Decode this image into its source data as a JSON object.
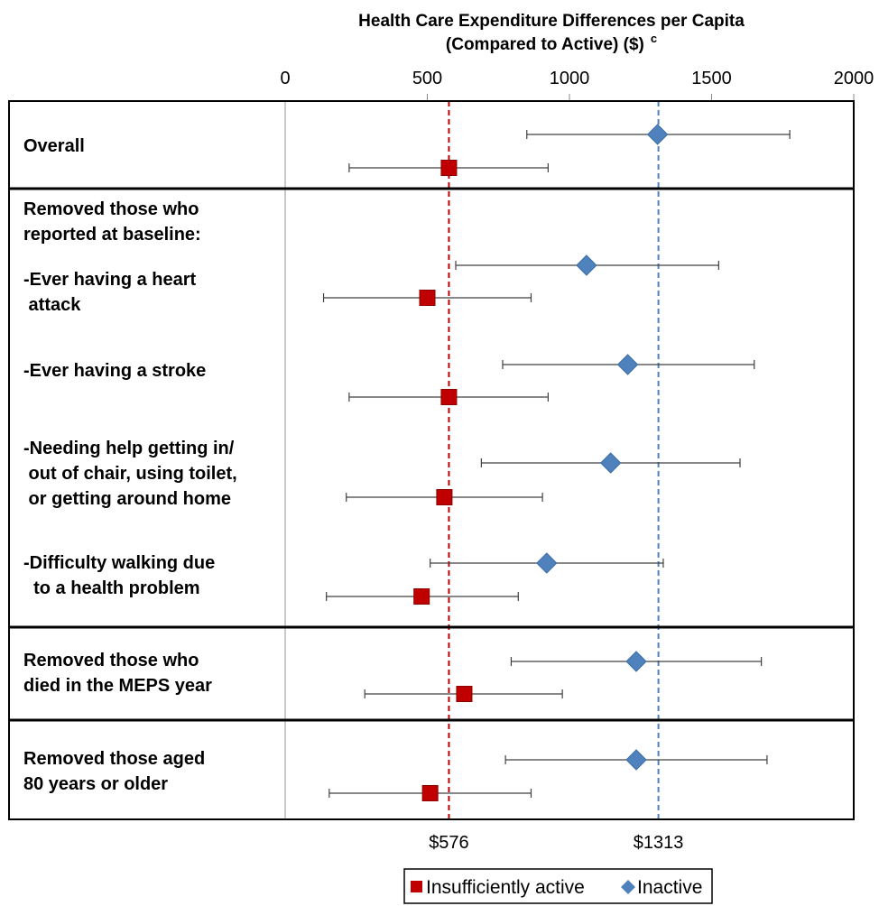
{
  "chart_data": {
    "type": "forest",
    "title": "Health Care Expenditure Differences per Capita",
    "subtitle": "(Compared to Active) ($)",
    "subtitle_superscript": "c",
    "x_axis": {
      "min": 0,
      "max": 2000,
      "ticks": [
        0,
        500,
        1000,
        1500,
        2000
      ],
      "position": "top"
    },
    "reference_lines": [
      {
        "value": 576,
        "label": "$576",
        "series": "Insufficiently active",
        "color": "#c00000",
        "style": "dashed"
      },
      {
        "value": 1313,
        "label": "$1313",
        "series": "Inactive",
        "color": "#4f81bd",
        "style": "dashed"
      }
    ],
    "series": [
      {
        "name": "Insufficiently active",
        "marker": "square",
        "color": "#c00000"
      },
      {
        "name": "Inactive",
        "marker": "diamond",
        "color": "#4f81bd"
      }
    ],
    "groups": [
      {
        "label_lines": [
          "Overall"
        ]
      },
      {
        "label_lines": [
          "Removed those who",
          "reported at baseline:"
        ]
      },
      {
        "label_lines": [
          "Removed those who",
          "died in the MEPS year"
        ]
      },
      {
        "label_lines": [
          "Removed those aged",
          "80 years or older"
        ]
      }
    ],
    "rows": [
      {
        "label_lines": [],
        "inactive": {
          "estimate": 1310,
          "lower": 850,
          "upper": 1775
        },
        "insufficiently_active": {
          "estimate": 576,
          "lower": 225,
          "upper": 925
        }
      },
      {
        "label_lines": [
          "-Ever having a heart",
          " attack"
        ],
        "inactive": {
          "estimate": 1060,
          "lower": 600,
          "upper": 1525
        },
        "insufficiently_active": {
          "estimate": 500,
          "lower": 135,
          "upper": 865
        }
      },
      {
        "label_lines": [
          "-Ever having a stroke"
        ],
        "inactive": {
          "estimate": 1205,
          "lower": 765,
          "upper": 1650
        },
        "insufficiently_active": {
          "estimate": 576,
          "lower": 225,
          "upper": 925
        }
      },
      {
        "label_lines": [
          "-Needing help getting in/",
          " out of chair, using toilet,",
          " or getting around home"
        ],
        "inactive": {
          "estimate": 1145,
          "lower": 690,
          "upper": 1600
        },
        "insufficiently_active": {
          "estimate": 560,
          "lower": 215,
          "upper": 905
        }
      },
      {
        "label_lines": [
          "-Difficulty walking due",
          "  to a health problem"
        ],
        "inactive": {
          "estimate": 920,
          "lower": 510,
          "upper": 1330
        },
        "insufficiently_active": {
          "estimate": 480,
          "lower": 145,
          "upper": 820
        }
      },
      {
        "label_lines": [],
        "inactive": {
          "estimate": 1235,
          "lower": 795,
          "upper": 1675
        },
        "insufficiently_active": {
          "estimate": 630,
          "lower": 280,
          "upper": 975
        }
      },
      {
        "label_lines": [],
        "inactive": {
          "estimate": 1235,
          "lower": 775,
          "upper": 1695
        },
        "insufficiently_active": {
          "estimate": 510,
          "lower": 155,
          "upper": 865
        }
      }
    ],
    "legend": {
      "position": "bottom-center",
      "items": [
        "Insufficiently active",
        "Inactive"
      ]
    }
  }
}
